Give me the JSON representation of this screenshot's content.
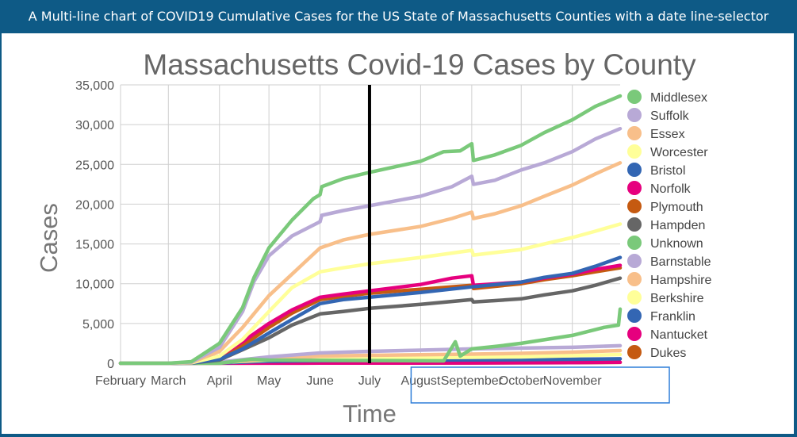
{
  "banner": {
    "text": "A Multi-line chart of COVID19 Cumulative Cases for the US State of Massachusetts Counties with a date line-selector"
  },
  "colors": {
    "banner_bg": "#0e5a86",
    "selector_line": "#000000",
    "brush_border": "#2f7ed8"
  },
  "selector": {
    "date": "2020-07-01"
  },
  "brush": {
    "start": "2020-08-01",
    "end": "2020-11-30"
  },
  "chart_data": {
    "type": "line",
    "title": "Massachusetts Covid-19 Cases by County",
    "xlabel": "Time",
    "ylabel": "Cases",
    "ylim": [
      0,
      35000
    ],
    "xlim": [
      "2020-02-01",
      "2020-11-30"
    ],
    "yticks": [
      "0",
      "5,000",
      "10,000",
      "15,000",
      "20,000",
      "25,000",
      "30,000",
      "35,000"
    ],
    "xticks": [
      {
        "date": "2020-02-01",
        "label": "February"
      },
      {
        "date": "2020-03-01",
        "label": "March"
      },
      {
        "date": "2020-04-01",
        "label": "April"
      },
      {
        "date": "2020-05-01",
        "label": "May"
      },
      {
        "date": "2020-06-01",
        "label": "June"
      },
      {
        "date": "2020-07-01",
        "label": "July"
      },
      {
        "date": "2020-08-01",
        "label": "August"
      },
      {
        "date": "2020-09-01",
        "label": "September"
      },
      {
        "date": "2020-10-01",
        "label": "October"
      },
      {
        "date": "2020-11-01",
        "label": "November"
      }
    ],
    "grid": true,
    "legend_position": "right",
    "series": [
      {
        "name": "Middlesex",
        "color": "#7ac97a",
        "points": [
          [
            "2020-02-01",
            0
          ],
          [
            "2020-03-01",
            0
          ],
          [
            "2020-03-15",
            200
          ],
          [
            "2020-04-01",
            2500
          ],
          [
            "2020-04-15",
            7000
          ],
          [
            "2020-04-22",
            10800
          ],
          [
            "2020-05-01",
            14500
          ],
          [
            "2020-05-15",
            18000
          ],
          [
            "2020-05-28",
            20700
          ],
          [
            "2020-06-01",
            21200
          ],
          [
            "2020-06-02",
            22200
          ],
          [
            "2020-06-15",
            23200
          ],
          [
            "2020-07-01",
            24000
          ],
          [
            "2020-08-01",
            25400
          ],
          [
            "2020-08-15",
            26600
          ],
          [
            "2020-08-25",
            26700
          ],
          [
            "2020-09-01",
            27600
          ],
          [
            "2020-09-02",
            25500
          ],
          [
            "2020-09-15",
            26200
          ],
          [
            "2020-10-01",
            27400
          ],
          [
            "2020-10-15",
            29000
          ],
          [
            "2020-11-01",
            30600
          ],
          [
            "2020-11-15",
            32300
          ],
          [
            "2020-11-30",
            33600
          ]
        ]
      },
      {
        "name": "Suffolk",
        "color": "#b8a9d6",
        "points": [
          [
            "2020-02-01",
            0
          ],
          [
            "2020-03-01",
            0
          ],
          [
            "2020-03-15",
            150
          ],
          [
            "2020-04-01",
            2000
          ],
          [
            "2020-04-15",
            6500
          ],
          [
            "2020-04-22",
            10300
          ],
          [
            "2020-05-01",
            13500
          ],
          [
            "2020-05-15",
            16000
          ],
          [
            "2020-06-01",
            17800
          ],
          [
            "2020-06-02",
            18600
          ],
          [
            "2020-06-15",
            19200
          ],
          [
            "2020-07-01",
            19800
          ],
          [
            "2020-08-01",
            21000
          ],
          [
            "2020-08-20",
            22200
          ],
          [
            "2020-09-01",
            23500
          ],
          [
            "2020-09-02",
            22500
          ],
          [
            "2020-09-15",
            23000
          ],
          [
            "2020-10-01",
            24300
          ],
          [
            "2020-10-15",
            25200
          ],
          [
            "2020-11-01",
            26600
          ],
          [
            "2020-11-15",
            28200
          ],
          [
            "2020-11-30",
            29500
          ]
        ]
      },
      {
        "name": "Essex",
        "color": "#f8bf8a",
        "points": [
          [
            "2020-02-01",
            0
          ],
          [
            "2020-03-01",
            0
          ],
          [
            "2020-03-15",
            100
          ],
          [
            "2020-04-01",
            1500
          ],
          [
            "2020-04-15",
            4500
          ],
          [
            "2020-05-01",
            8500
          ],
          [
            "2020-05-15",
            11200
          ],
          [
            "2020-06-01",
            14500
          ],
          [
            "2020-06-15",
            15500
          ],
          [
            "2020-07-01",
            16200
          ],
          [
            "2020-08-01",
            17200
          ],
          [
            "2020-08-20",
            18200
          ],
          [
            "2020-09-01",
            19000
          ],
          [
            "2020-09-02",
            18200
          ],
          [
            "2020-09-15",
            18800
          ],
          [
            "2020-10-01",
            19800
          ],
          [
            "2020-10-15",
            21000
          ],
          [
            "2020-11-01",
            22400
          ],
          [
            "2020-11-15",
            23800
          ],
          [
            "2020-11-30",
            25200
          ]
        ]
      },
      {
        "name": "Worcester",
        "color": "#ffff99",
        "points": [
          [
            "2020-02-01",
            0
          ],
          [
            "2020-03-01",
            0
          ],
          [
            "2020-03-15",
            60
          ],
          [
            "2020-04-01",
            900
          ],
          [
            "2020-04-15",
            3000
          ],
          [
            "2020-05-01",
            6500
          ],
          [
            "2020-05-15",
            9500
          ],
          [
            "2020-06-01",
            11500
          ],
          [
            "2020-06-15",
            12000
          ],
          [
            "2020-07-01",
            12500
          ],
          [
            "2020-08-01",
            13300
          ],
          [
            "2020-09-01",
            14200
          ],
          [
            "2020-09-02",
            13600
          ],
          [
            "2020-10-01",
            14300
          ],
          [
            "2020-10-15",
            15000
          ],
          [
            "2020-11-01",
            15800
          ],
          [
            "2020-11-15",
            16600
          ],
          [
            "2020-11-30",
            17500
          ]
        ]
      },
      {
        "name": "Bristol",
        "color": "#3366b3",
        "points": [
          [
            "2020-02-01",
            0
          ],
          [
            "2020-03-01",
            0
          ],
          [
            "2020-03-15",
            40
          ],
          [
            "2020-04-01",
            500
          ],
          [
            "2020-04-15",
            1800
          ],
          [
            "2020-05-01",
            3800
          ],
          [
            "2020-05-15",
            5500
          ],
          [
            "2020-06-01",
            7500
          ],
          [
            "2020-06-15",
            8000
          ],
          [
            "2020-07-01",
            8300
          ],
          [
            "2020-08-01",
            8900
          ],
          [
            "2020-09-01",
            9600
          ],
          [
            "2020-10-01",
            10200
          ],
          [
            "2020-10-15",
            10800
          ],
          [
            "2020-11-01",
            11300
          ],
          [
            "2020-11-15",
            12200
          ],
          [
            "2020-11-30",
            13300
          ]
        ]
      },
      {
        "name": "Norfolk",
        "color": "#e6007e",
        "points": [
          [
            "2020-02-01",
            0
          ],
          [
            "2020-03-01",
            0
          ],
          [
            "2020-03-15",
            80
          ],
          [
            "2020-04-01",
            900
          ],
          [
            "2020-04-15",
            2700
          ],
          [
            "2020-05-01",
            5000
          ],
          [
            "2020-05-15",
            6700
          ],
          [
            "2020-06-01",
            8300
          ],
          [
            "2020-06-15",
            8700
          ],
          [
            "2020-07-01",
            9100
          ],
          [
            "2020-08-01",
            9900
          ],
          [
            "2020-08-20",
            10700
          ],
          [
            "2020-09-01",
            11000
          ],
          [
            "2020-09-02",
            9800
          ],
          [
            "2020-10-01",
            10200
          ],
          [
            "2020-10-15",
            10700
          ],
          [
            "2020-11-01",
            11200
          ],
          [
            "2020-11-15",
            11800
          ],
          [
            "2020-11-30",
            12300
          ]
        ]
      },
      {
        "name": "Plymouth",
        "color": "#c55a11",
        "points": [
          [
            "2020-02-01",
            0
          ],
          [
            "2020-03-01",
            0
          ],
          [
            "2020-03-15",
            50
          ],
          [
            "2020-04-01",
            700
          ],
          [
            "2020-04-15",
            2200
          ],
          [
            "2020-05-01",
            4500
          ],
          [
            "2020-05-15",
            6300
          ],
          [
            "2020-06-01",
            8000
          ],
          [
            "2020-06-15",
            8400
          ],
          [
            "2020-07-01",
            8800
          ],
          [
            "2020-08-01",
            9300
          ],
          [
            "2020-09-01",
            9800
          ],
          [
            "2020-09-02",
            9400
          ],
          [
            "2020-10-01",
            10000
          ],
          [
            "2020-10-15",
            10500
          ],
          [
            "2020-11-01",
            11000
          ],
          [
            "2020-11-15",
            11500
          ],
          [
            "2020-11-30",
            12000
          ]
        ]
      },
      {
        "name": "Hampden",
        "color": "#666666",
        "points": [
          [
            "2020-02-01",
            0
          ],
          [
            "2020-03-01",
            0
          ],
          [
            "2020-03-15",
            30
          ],
          [
            "2020-04-01",
            400
          ],
          [
            "2020-04-15",
            1700
          ],
          [
            "2020-05-01",
            3200
          ],
          [
            "2020-05-15",
            4800
          ],
          [
            "2020-06-01",
            6200
          ],
          [
            "2020-06-15",
            6500
          ],
          [
            "2020-07-01",
            6900
          ],
          [
            "2020-08-01",
            7400
          ],
          [
            "2020-09-01",
            8000
          ],
          [
            "2020-09-02",
            7700
          ],
          [
            "2020-10-01",
            8100
          ],
          [
            "2020-10-15",
            8600
          ],
          [
            "2020-11-01",
            9100
          ],
          [
            "2020-11-15",
            9800
          ],
          [
            "2020-11-30",
            10700
          ]
        ]
      },
      {
        "name": "Unknown",
        "color": "#7ac97a",
        "points": [
          [
            "2020-02-01",
            0
          ],
          [
            "2020-03-01",
            0
          ],
          [
            "2020-04-01",
            0
          ],
          [
            "2020-04-20",
            500
          ],
          [
            "2020-05-01",
            400
          ],
          [
            "2020-08-15",
            300
          ],
          [
            "2020-08-22",
            2700
          ],
          [
            "2020-08-25",
            900
          ],
          [
            "2020-09-01",
            1800
          ],
          [
            "2020-09-15",
            2100
          ],
          [
            "2020-10-01",
            2500
          ],
          [
            "2020-11-01",
            3500
          ],
          [
            "2020-11-20",
            4500
          ],
          [
            "2020-11-29",
            4800
          ],
          [
            "2020-11-30",
            6800
          ]
        ]
      },
      {
        "name": "Barnstable",
        "color": "#b8a9d6",
        "points": [
          [
            "2020-02-01",
            0
          ],
          [
            "2020-03-01",
            0
          ],
          [
            "2020-03-20",
            30
          ],
          [
            "2020-04-01",
            150
          ],
          [
            "2020-05-01",
            800
          ],
          [
            "2020-06-01",
            1300
          ],
          [
            "2020-07-01",
            1500
          ],
          [
            "2020-08-01",
            1650
          ],
          [
            "2020-09-01",
            1800
          ],
          [
            "2020-10-01",
            1900
          ],
          [
            "2020-11-01",
            2000
          ],
          [
            "2020-11-30",
            2200
          ]
        ]
      },
      {
        "name": "Hampshire",
        "color": "#f8bf8a",
        "points": [
          [
            "2020-02-01",
            0
          ],
          [
            "2020-03-01",
            0
          ],
          [
            "2020-04-01",
            100
          ],
          [
            "2020-05-01",
            500
          ],
          [
            "2020-06-01",
            900
          ],
          [
            "2020-07-01",
            1000
          ],
          [
            "2020-08-01",
            1080
          ],
          [
            "2020-09-01",
            1150
          ],
          [
            "2020-10-01",
            1250
          ],
          [
            "2020-11-01",
            1400
          ],
          [
            "2020-11-30",
            1600
          ]
        ]
      },
      {
        "name": "Berkshire",
        "color": "#ffff99",
        "points": [
          [
            "2020-02-01",
            0
          ],
          [
            "2020-03-01",
            0
          ],
          [
            "2020-04-01",
            100
          ],
          [
            "2020-05-01",
            400
          ],
          [
            "2020-06-01",
            550
          ],
          [
            "2020-07-01",
            650
          ],
          [
            "2020-08-01",
            700
          ],
          [
            "2020-09-01",
            750
          ],
          [
            "2020-10-01",
            800
          ],
          [
            "2020-11-01",
            950
          ],
          [
            "2020-11-30",
            1100
          ]
        ]
      },
      {
        "name": "Franklin",
        "color": "#3366b3",
        "points": [
          [
            "2020-02-01",
            0
          ],
          [
            "2020-03-01",
            0
          ],
          [
            "2020-04-01",
            40
          ],
          [
            "2020-05-01",
            250
          ],
          [
            "2020-06-01",
            330
          ],
          [
            "2020-07-01",
            360
          ],
          [
            "2020-08-01",
            390
          ],
          [
            "2020-09-01",
            420
          ],
          [
            "2020-10-01",
            450
          ],
          [
            "2020-11-01",
            500
          ],
          [
            "2020-11-30",
            560
          ]
        ]
      },
      {
        "name": "Nantucket",
        "color": "#e6007e",
        "points": [
          [
            "2020-02-01",
            0
          ],
          [
            "2020-03-01",
            0
          ],
          [
            "2020-04-01",
            5
          ],
          [
            "2020-05-01",
            12
          ],
          [
            "2020-06-01",
            15
          ],
          [
            "2020-07-01",
            20
          ],
          [
            "2020-08-01",
            30
          ],
          [
            "2020-09-01",
            40
          ],
          [
            "2020-10-01",
            60
          ],
          [
            "2020-11-01",
            80
          ],
          [
            "2020-11-30",
            120
          ]
        ]
      },
      {
        "name": "Dukes",
        "color": "#c55a11",
        "points": [
          [
            "2020-02-01",
            0
          ],
          [
            "2020-03-01",
            0
          ],
          [
            "2020-04-01",
            5
          ],
          [
            "2020-05-01",
            15
          ],
          [
            "2020-06-01",
            20
          ],
          [
            "2020-07-01",
            25
          ],
          [
            "2020-08-01",
            35
          ],
          [
            "2020-09-01",
            45
          ],
          [
            "2020-10-01",
            60
          ],
          [
            "2020-11-01",
            80
          ],
          [
            "2020-11-30",
            110
          ]
        ]
      }
    ]
  }
}
